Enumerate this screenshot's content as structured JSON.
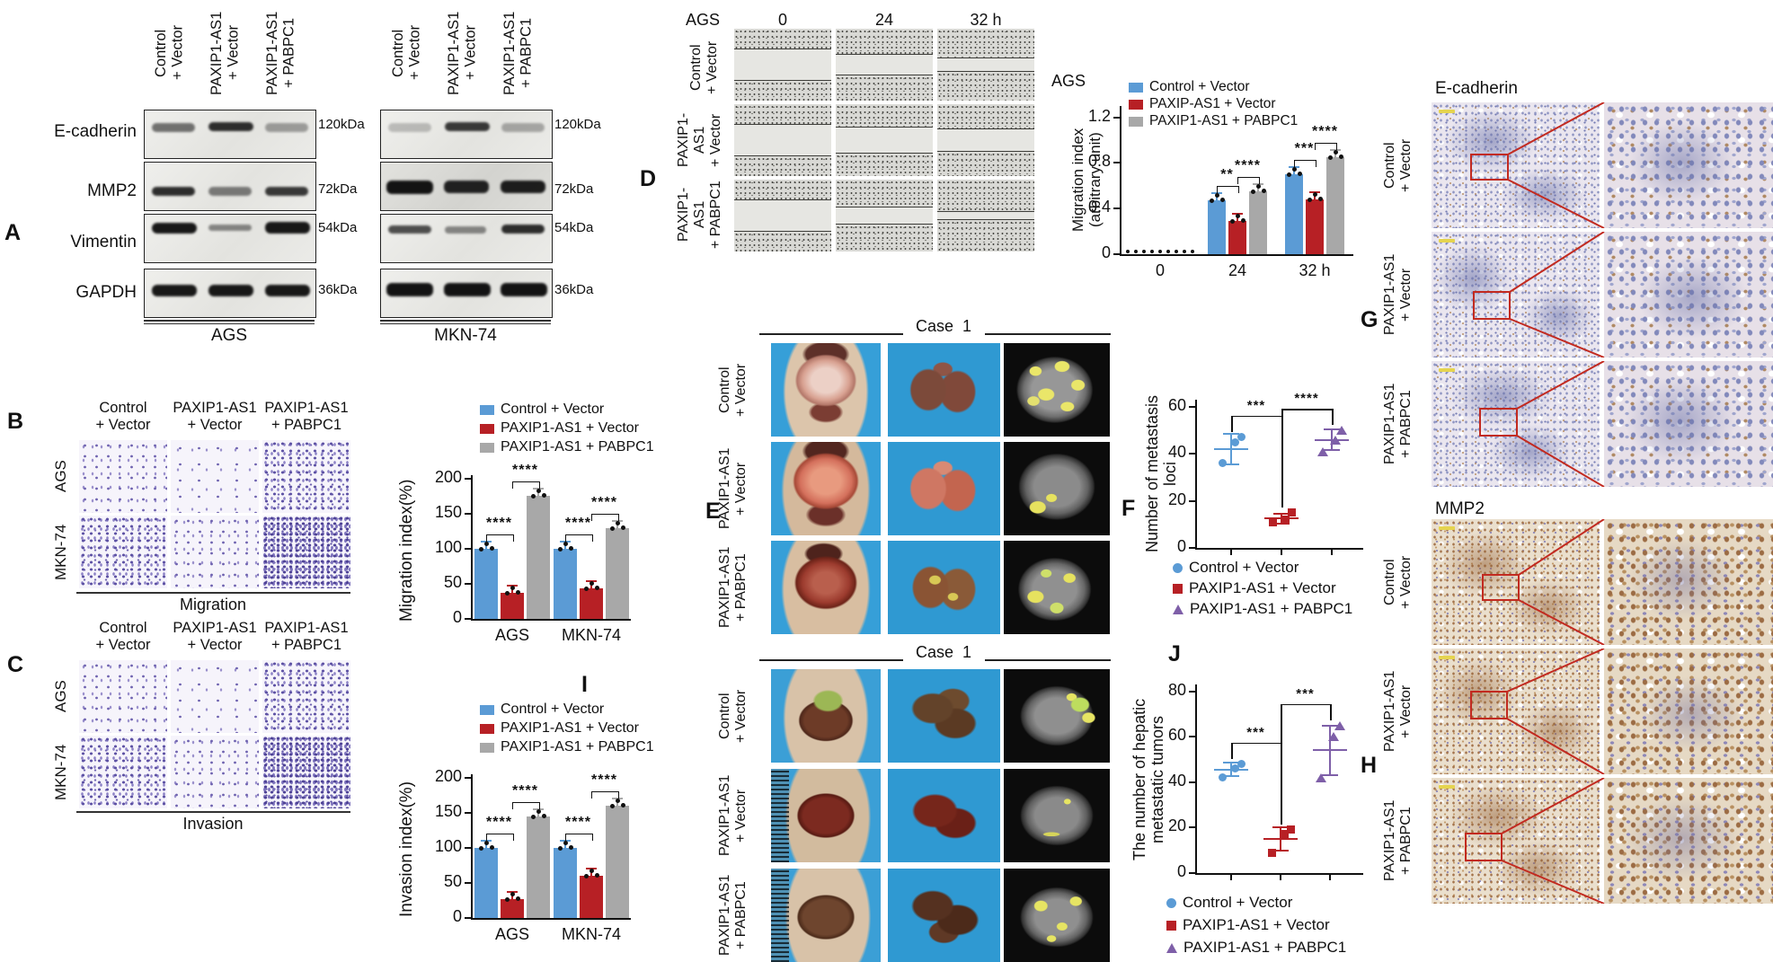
{
  "colors": {
    "blue": "#5b9bd5",
    "red": "#b72025",
    "gray": "#a8a8a8",
    "purple": "#7e5fa8",
    "sig": "#111111",
    "accent_red_box": "#c22a20",
    "scale_bar_yellow": "#e5d44f"
  },
  "groups": {
    "g1": "Control + Vector",
    "g2": "PAXIP1-AS1 + Vector",
    "g3": "PAXIP1-AS1 + PABPC1",
    "g1_2l": "Control\n+ Vector",
    "g2_2l": "PAXIP1-AS1\n+ Vector",
    "g3_2l": "PAXIP1-AS1\n+ PABPC1",
    "g2_3l": "PAXIP1-\nAS1\n+ Vector",
    "g3_3l": "PAXIP1-\nAS1\n+ PABPC1"
  },
  "panel_a": {
    "label": "A",
    "proteins": [
      "E-cadherin",
      "MMP2",
      "Vimentin",
      "GAPDH"
    ],
    "weights": [
      "120kDa",
      "72kDa",
      "54kDa",
      "36kDa"
    ],
    "cell_lines": [
      "AGS",
      "MKN-74"
    ]
  },
  "panel_b": {
    "label": "B",
    "caption": "Migration",
    "row_labels": [
      "AGS",
      "MKN-74"
    ]
  },
  "panel_c": {
    "label": "C",
    "caption": "Invasion",
    "row_labels": [
      "AGS",
      "MKN-74"
    ]
  },
  "panel_d": {
    "label": "D",
    "cell_line": "AGS",
    "times": [
      "0",
      "24",
      "32 h"
    ]
  },
  "panel_e": {
    "label": "E",
    "case": "Case  1"
  },
  "panel_f": {
    "label": "F"
  },
  "panel_g": {
    "label": "G",
    "title": "E-cadherin"
  },
  "panel_h": {
    "label": "H",
    "title": "MMP2"
  },
  "panel_i": {
    "label": "I",
    "case": "Case  1"
  },
  "panel_j": {
    "label": "J"
  },
  "chart_data": [
    {
      "id": "chartB",
      "type": "bar",
      "panel": "B",
      "title": "",
      "ylabel": "Migration index(%)",
      "ylim": [
        0,
        205
      ],
      "yticks": [
        0,
        50,
        100,
        150,
        200
      ],
      "categories": [
        "AGS",
        "MKN-74"
      ],
      "series": [
        {
          "name": "Control + Vector",
          "color": "blue",
          "values": [
            100,
            100
          ]
        },
        {
          "name": "PAXIP1-AS1 + Vector",
          "color": "red",
          "values": [
            37,
            43
          ]
        },
        {
          "name": "PAXIP1-AS1 + PABPC1",
          "color": "gray",
          "values": [
            175,
            130
          ]
        }
      ],
      "legend": [
        "Control + Vector",
        "PAXIP1-AS1 + Vector",
        "PAXIP1-AS1 + PABPC1"
      ],
      "sig": [
        {
          "label": "****",
          "cat": 0,
          "bars": [
            0,
            1
          ]
        },
        {
          "label": "****",
          "cat": 0,
          "bars": [
            1,
            2
          ]
        },
        {
          "label": "****",
          "cat": 1,
          "bars": [
            0,
            1
          ]
        },
        {
          "label": "****",
          "cat": 1,
          "bars": [
            1,
            2
          ]
        }
      ]
    },
    {
      "id": "chartC",
      "type": "bar",
      "panel": "C",
      "title": "",
      "ylabel": "Invasion index(%)",
      "ylim": [
        0,
        205
      ],
      "yticks": [
        0,
        50,
        100,
        150,
        200
      ],
      "categories": [
        "AGS",
        "MKN-74"
      ],
      "series": [
        {
          "name": "Control + Vector",
          "color": "blue",
          "values": [
            100,
            100
          ]
        },
        {
          "name": "PAXIP1-AS1 + Vector",
          "color": "red",
          "values": [
            27,
            60
          ]
        },
        {
          "name": "PAXIP1-AS1 + PABPC1",
          "color": "gray",
          "values": [
            145,
            160
          ]
        }
      ],
      "legend": [
        "Control + Vector",
        "PAXIP1-AS1 + Vector",
        "PAXIP1-AS1 + PABPC1"
      ],
      "sig": [
        {
          "label": "****",
          "cat": 0,
          "bars": [
            0,
            1
          ]
        },
        {
          "label": "****",
          "cat": 0,
          "bars": [
            1,
            2
          ]
        },
        {
          "label": "****",
          "cat": 1,
          "bars": [
            0,
            1
          ]
        },
        {
          "label": "****",
          "cat": 1,
          "bars": [
            1,
            2
          ]
        }
      ]
    },
    {
      "id": "chartD",
      "type": "bar",
      "panel": "D",
      "title": "AGS",
      "ylabel": "Migration index\n(arbitrary unit)",
      "ylim": [
        0,
        1.3
      ],
      "yticks": [
        0,
        0.4,
        0.8,
        1.2
      ],
      "categories": [
        "0",
        "24",
        "32 h"
      ],
      "series": [
        {
          "name": "Control + Vector",
          "color": "blue",
          "values": [
            0.02,
            0.47,
            0.7
          ]
        },
        {
          "name": "PAXIP-AS1 + Vector",
          "color": "red",
          "values": [
            0.02,
            0.29,
            0.48
          ]
        },
        {
          "name": "PAXIP1-AS1 + PABPC1",
          "color": "gray",
          "values": [
            0.02,
            0.55,
            0.85
          ]
        }
      ],
      "legend": [
        "Control + Vector",
        "PAXIP-AS1 + Vector",
        "PAXIP1-AS1 + PABPC1"
      ],
      "sig": [
        {
          "label": "**",
          "cat": 1,
          "bars": [
            0,
            1
          ]
        },
        {
          "label": "****",
          "cat": 1,
          "bars": [
            1,
            2
          ]
        },
        {
          "label": "***",
          "cat": 2,
          "bars": [
            0,
            1
          ]
        },
        {
          "label": "****",
          "cat": 2,
          "bars": [
            1,
            2
          ]
        }
      ]
    },
    {
      "id": "chartF",
      "type": "scatter",
      "panel": "F",
      "title": "",
      "ylabel": "Number of metastasis loci",
      "ylim": [
        0,
        63
      ],
      "yticks": [
        0,
        20,
        40,
        60
      ],
      "groups": [
        {
          "name": "Control + Vector",
          "marker": "circle",
          "color": "blue",
          "mean": 42,
          "sd": 6.5,
          "points": [
            36,
            45,
            47
          ]
        },
        {
          "name": "PAXIP1-AS1 + Vector",
          "marker": "square",
          "color": "red",
          "mean": 12.5,
          "sd": 2,
          "points": [
            11,
            12,
            15
          ]
        },
        {
          "name": "PAXIP1-AS1 + PABPC1",
          "marker": "triangle",
          "color": "purple",
          "mean": 46,
          "sd": 4.5,
          "points": [
            41,
            46,
            50
          ]
        }
      ],
      "legend": [
        "Control + Vector",
        "PAXIP1-AS1 + Vector",
        "PAXIP1-AS1 + PABPC1"
      ],
      "sig": [
        {
          "label": "***",
          "groups": [
            0,
            1
          ]
        },
        {
          "label": "****",
          "groups": [
            1,
            2
          ]
        }
      ]
    },
    {
      "id": "chartJ",
      "type": "scatter",
      "panel": "J",
      "title": "",
      "ylabel": "The number of hepatic\nmetastatic tumors",
      "ylim": [
        0,
        83
      ],
      "yticks": [
        0,
        20,
        40,
        60,
        80
      ],
      "groups": [
        {
          "name": "Control + Vector",
          "marker": "circle",
          "color": "blue",
          "mean": 45.5,
          "sd": 3,
          "points": [
            42,
            46,
            48
          ]
        },
        {
          "name": "PAXIP1-AS1 + Vector",
          "marker": "square",
          "color": "red",
          "mean": 15,
          "sd": 5,
          "points": [
            9,
            17,
            19
          ]
        },
        {
          "name": "PAXIP1-AS1 + PABPC1",
          "marker": "triangle",
          "color": "purple",
          "mean": 54,
          "sd": 11,
          "points": [
            42,
            60,
            65
          ]
        }
      ],
      "legend": [
        "Control + Vector",
        "PAXIP1-AS1 + Vector",
        "PAXIP1-AS1 + PABPC1"
      ],
      "sig": [
        {
          "label": "***",
          "groups": [
            0,
            1
          ]
        },
        {
          "label": "***",
          "groups": [
            1,
            2
          ]
        }
      ]
    }
  ]
}
